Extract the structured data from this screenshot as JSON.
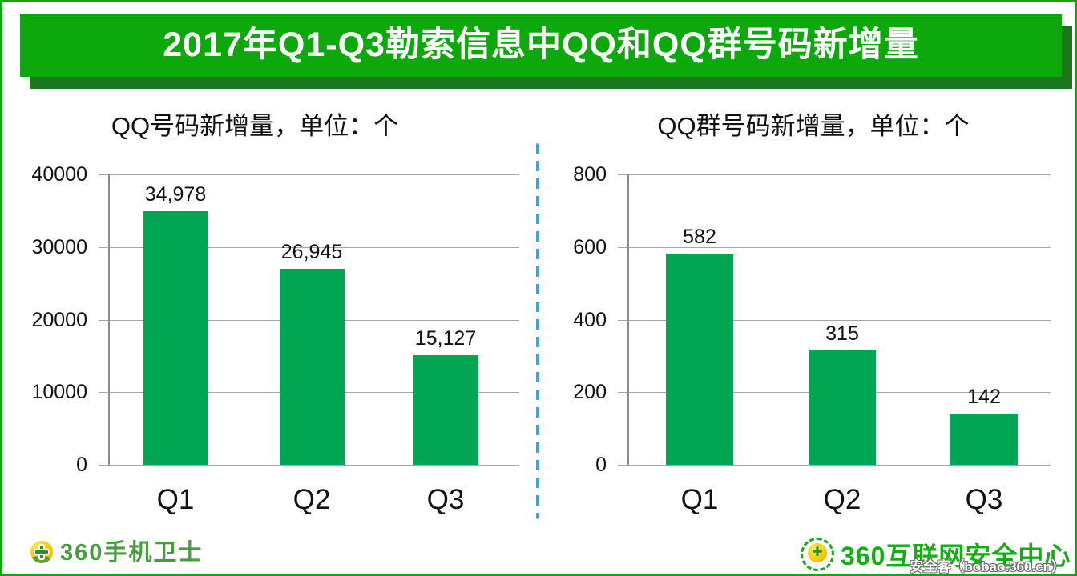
{
  "page": {
    "title": "2017年Q1-Q3勒索信息中QQ和QQ群号码新增量",
    "colors": {
      "banner_green": "#0CA80C",
      "banner_shadow_green": "#1A781A",
      "bar_green": "#00A651",
      "divider_blue": "#2FA9E0",
      "gridline_gray": "#A6A6A6",
      "axis_gray": "#8C8C8C"
    }
  },
  "chart_data": [
    {
      "type": "bar",
      "title": "QQ号码新增量，单位：个",
      "categories": [
        "Q1",
        "Q2",
        "Q3"
      ],
      "values": [
        34978,
        26945,
        15127
      ],
      "value_labels": [
        "34,978",
        "26,945",
        "15,127"
      ],
      "xlabel": "",
      "ylabel": "",
      "ylim": [
        0,
        40000
      ],
      "yticks": [
        0,
        10000,
        20000,
        30000,
        40000
      ],
      "ytick_labels": [
        "0",
        "10000",
        "20000",
        "30000",
        "40000"
      ],
      "grid": true,
      "legend": "none",
      "bar_color": "#00A651"
    },
    {
      "type": "bar",
      "title": "QQ群号码新增量，单位：个",
      "categories": [
        "Q1",
        "Q2",
        "Q3"
      ],
      "values": [
        582,
        315,
        142
      ],
      "value_labels": [
        "582",
        "315",
        "142"
      ],
      "xlabel": "",
      "ylabel": "",
      "ylim": [
        0,
        800
      ],
      "yticks": [
        0,
        200,
        400,
        600,
        800
      ],
      "ytick_labels": [
        "0",
        "200",
        "400",
        "600",
        "800"
      ],
      "grid": true,
      "legend": "none",
      "bar_color": "#00A651"
    }
  ],
  "footer": {
    "left_logo_text": "360手机卫士",
    "right_logo_text": "360互联网安全中心",
    "right_logo_cross": "✚",
    "watermark": "安全客（bobao.360.cn）"
  }
}
